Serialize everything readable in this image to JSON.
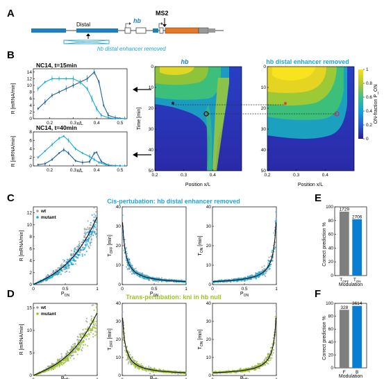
{
  "panels": {
    "A": "A",
    "B": "B",
    "C": "C",
    "D": "D",
    "E": "E",
    "F": "F"
  },
  "panel_a": {
    "hb": "hb",
    "ms2": "MS2",
    "distal": "Distal",
    "removed": "hb distal enhancer removed"
  },
  "panel_b": {
    "line1_title": "NC14, t=15min",
    "line2_title": "NC14, t=40min",
    "line_ylabel": "R [mRNA/min]",
    "line_xlabel": "x/L",
    "hm1_title": "hb",
    "hm2_title": "hb distal enhancer removed",
    "hm_ylabel": "Time [min]",
    "hm_xlabel": "Position x/L",
    "cbar_label": "ON-fraction P_ON",
    "hm_yticks": [
      "0",
      "10",
      "20",
      "30",
      "40",
      "50"
    ],
    "hm_xticks": [
      "0.2",
      "0.3",
      "0.4"
    ],
    "cbar_ticks": [
      "0",
      "0.2",
      "0.4",
      "0.6",
      "0.8",
      "1"
    ],
    "line_xticks": [
      "0.2",
      "0.3",
      "0.4",
      "0.5"
    ],
    "line_yticks1": [
      "0",
      "2",
      "4",
      "6",
      "8",
      "10",
      "12",
      "14"
    ],
    "line_yticks2": [
      "0",
      "2",
      "4",
      "6",
      "8"
    ]
  },
  "panel_c": {
    "title": "Cis-pertubation: hb distal enhancer removed",
    "legend_wt": "wt",
    "legend_mut": "mutant"
  },
  "panel_d": {
    "title": "Trans-pertubation: kni in hb null",
    "legend_wt": "wt",
    "legend_mut": "mutant"
  },
  "scatter_axes": {
    "r_ylabel": "R [mRNA/min]",
    "toff_ylabel": "T_OFF [min]",
    "ton_ylabel": "T_ON [min]",
    "xlabel": "P_ON",
    "xticks": [
      "0",
      "0.5",
      "1"
    ],
    "r_yticks_c": [
      "0",
      "2",
      "4",
      "6",
      "8",
      "10",
      "12"
    ],
    "r_yticks_d": [
      "0",
      "5",
      "10",
      "15"
    ],
    "t_yticks": [
      "0",
      "10",
      "20",
      "30",
      "40"
    ]
  },
  "panel_e": {
    "ylabel": "Correct prediction %",
    "xlabel": "Modulation",
    "yticks": [
      "0",
      "20",
      "40",
      "60",
      "80",
      "100"
    ]
  },
  "panel_f": {
    "ylabel": "Correct prediction %",
    "xlabel": "Modulation",
    "yticks": [
      "0",
      "20",
      "40",
      "60",
      "80",
      "100"
    ]
  },
  "colors": {
    "wt": "#9e9e9e",
    "mutant_c": "#1aa7d9",
    "mutant_d": "#9bc41f",
    "bar1": "#7f7f7f",
    "bar2": "#0a7fd1",
    "star_red": "#d9294a"
  },
  "chart_data": [
    {
      "type": "bar",
      "panel": "E",
      "categories": [
        "T_OFF",
        "T_ON"
      ],
      "values": [
        93,
        82
      ],
      "labels": [
        "1729",
        "2706"
      ],
      "ylim": [
        0,
        100
      ],
      "ylabel": "Correct prediction %",
      "xlabel": "Modulation"
    },
    {
      "type": "bar",
      "panel": "F",
      "categories": [
        "F",
        "B"
      ],
      "values": [
        90,
        96
      ],
      "labels": [
        "328",
        "3614"
      ],
      "ylim": [
        0,
        100
      ],
      "ylabel": "Correct prediction %",
      "xlabel": "Modulation"
    },
    {
      "type": "line",
      "panel": "B-top",
      "title": "NC14, t=15min",
      "xlabel": "x/L",
      "ylabel": "R [mRNA/min]",
      "xlim": [
        0.13,
        0.53
      ],
      "ylim": [
        0,
        15
      ],
      "series": [
        {
          "color": "#1d5f9e",
          "x": [
            0.15,
            0.18,
            0.21,
            0.24,
            0.27,
            0.3,
            0.33,
            0.36,
            0.39,
            0.41,
            0.43,
            0.45,
            0.48,
            0.52
          ],
          "y": [
            3,
            5,
            7,
            8,
            9,
            10,
            11,
            12,
            14,
            11,
            4,
            1,
            0.3,
            0
          ]
        },
        {
          "color": "#1aa7d9",
          "x": [
            0.15,
            0.18,
            0.21,
            0.24,
            0.27,
            0.3,
            0.33,
            0.36,
            0.38,
            0.4,
            0.42,
            0.45,
            0.48,
            0.52
          ],
          "y": [
            9,
            11,
            12,
            12,
            12,
            12,
            11,
            9,
            6,
            3,
            1,
            0.3,
            0,
            0
          ]
        }
      ]
    },
    {
      "type": "line",
      "panel": "B-bottom",
      "title": "NC14, t=40min",
      "xlabel": "x/L",
      "ylabel": "R [mRNA/min]",
      "xlim": [
        0.13,
        0.53
      ],
      "ylim": [
        0,
        8
      ],
      "series": [
        {
          "color": "#1d5f9e",
          "x": [
            0.15,
            0.18,
            0.21,
            0.24,
            0.26,
            0.28,
            0.31,
            0.34,
            0.37,
            0.39,
            0.4,
            0.42,
            0.45,
            0.5
          ],
          "y": [
            0.3,
            0.5,
            1.5,
            3,
            3.8,
            3,
            1.2,
            0.8,
            1,
            3,
            3.2,
            1,
            0.2,
            0
          ]
        },
        {
          "color": "#1aa7d9",
          "x": [
            0.15,
            0.18,
            0.21,
            0.24,
            0.26,
            0.28,
            0.31,
            0.34,
            0.37,
            0.39,
            0.41,
            0.44,
            0.48,
            0.52
          ],
          "y": [
            2,
            3.5,
            5,
            6.5,
            7,
            6,
            4,
            3,
            2.2,
            1.5,
            0.8,
            0.3,
            0,
            0
          ]
        }
      ]
    }
  ]
}
